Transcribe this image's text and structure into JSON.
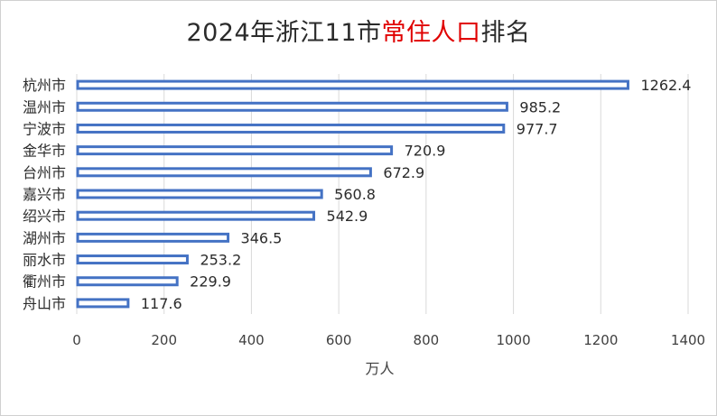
{
  "title": {
    "prefix": "2024年浙江11市",
    "highlight": "常住人口",
    "suffix": "排名",
    "highlight_color": "#e00000"
  },
  "chart_data": {
    "type": "bar",
    "orientation": "horizontal",
    "title": "2024年浙江11市常住人口排名",
    "categories": [
      "杭州市",
      "温州市",
      "宁波市",
      "金华市",
      "台州市",
      "嘉兴市",
      "绍兴市",
      "湖州市",
      "丽水市",
      "衢州市",
      "舟山市"
    ],
    "values": [
      1262.4,
      985.2,
      977.7,
      720.9,
      672.9,
      560.8,
      542.9,
      346.5,
      253.2,
      229.9,
      117.6
    ],
    "value_labels": [
      "1262.4",
      "985.2",
      "977.7",
      "720.9",
      "672.9",
      "560.8",
      "542.9",
      "346.5",
      "253.2",
      "229.9",
      "117.6"
    ],
    "xlabel": "万人",
    "ylabel": "",
    "xlim": [
      0,
      1400
    ],
    "xticks": [
      "0",
      "200",
      "400",
      "600",
      "800",
      "1000",
      "1200",
      "1400"
    ],
    "grid": true,
    "bar_fill": "#ffffff",
    "bar_outline": "#4472c4",
    "grid_color": "#d9d9d9"
  }
}
